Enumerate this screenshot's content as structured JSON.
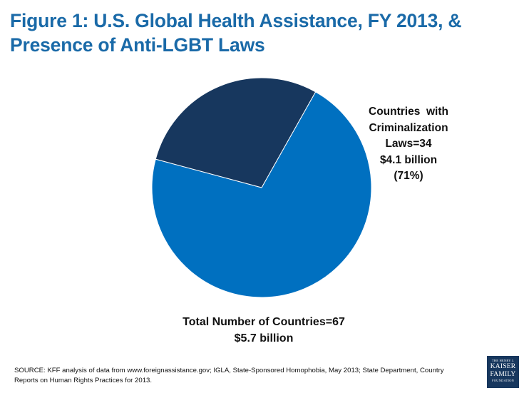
{
  "title_lines": [
    "Figure 1: U.S. Global Health Assistance, FY 2013, &",
    "Presence of Anti-LGBT Laws"
  ],
  "slice_label_lines": [
    "Countries  with",
    "Criminalization",
    "Laws=34",
    "$4.1 billion",
    "(71%)"
  ],
  "total_lines": [
    "Total Number of Countries=67",
    "$5.7 billion"
  ],
  "source_lines": [
    "SOURCE: KFF analysis of data from www.foreignassistance.gov; IGLA, State-Sponsored Homophobia, May 2013; State Department, Country",
    "Reports on Human Rights Practices for 2013."
  ],
  "logo_lines": [
    "THE HENRY J.",
    "KAISER",
    "FAMILY",
    "FOUNDATION"
  ],
  "colors": {
    "title": "#1a6aa8",
    "criminalization": "#0070c0",
    "other": "#17375e"
  },
  "chart_data": {
    "type": "pie",
    "title": "Figure 1: U.S. Global Health Assistance, FY 2013, & Presence of Anti-LGBT Laws",
    "slices": [
      {
        "label": "Countries with Criminalization Laws=34",
        "value": 71,
        "amount": "$4.1 billion",
        "color": "#0070c0"
      },
      {
        "label": "",
        "value": 29,
        "color": "#17375e"
      }
    ],
    "total": "Total Number of Countries=67, $5.7 billion"
  }
}
